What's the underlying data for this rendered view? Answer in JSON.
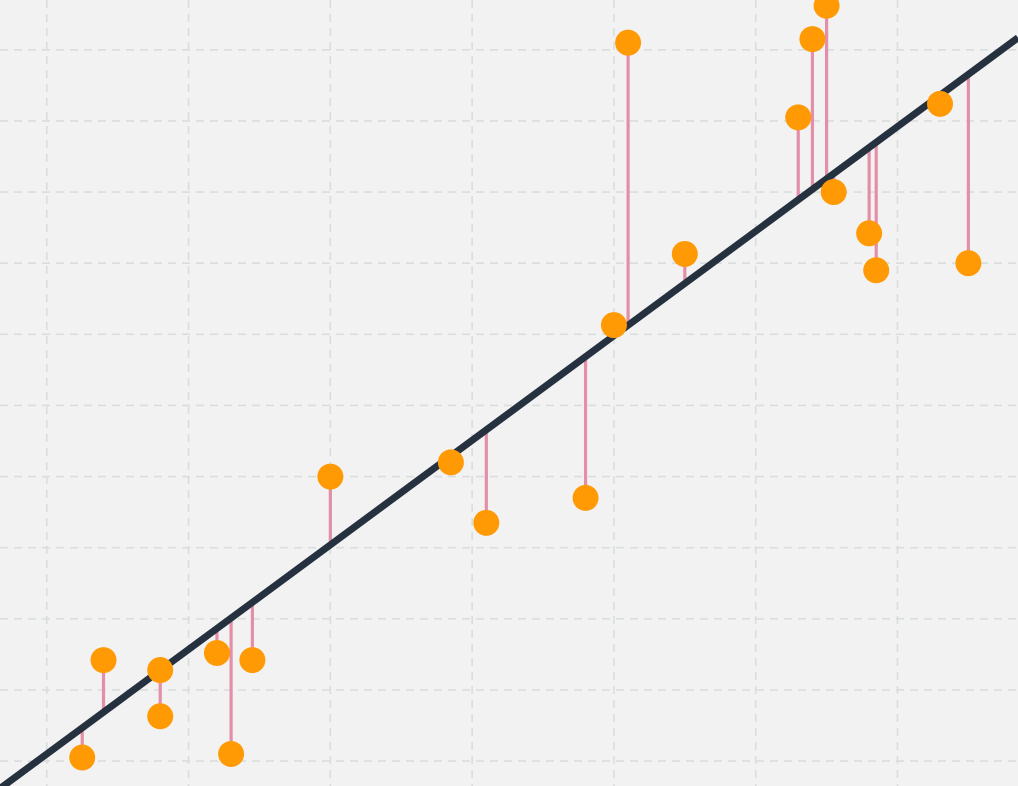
{
  "chart_data": {
    "type": "scatter",
    "grid": true,
    "xlim": [
      -0.33,
      6.85
    ],
    "ylim": [
      -0.35,
      10.7
    ],
    "fit_line": {
      "slope": 1.47,
      "intercept": 0.1
    },
    "series": [
      {
        "x": [
          0.25,
          0.4,
          0.8,
          0.8,
          1.2,
          1.3,
          1.45,
          2.0,
          2.85,
          3.1,
          3.8,
          4.0,
          4.1,
          4.5,
          5.3,
          5.4,
          5.5,
          5.55,
          5.8,
          5.85,
          6.3,
          6.5
        ],
        "y": [
          0.05,
          1.42,
          1.28,
          0.63,
          1.52,
          0.1,
          1.42,
          4.0,
          4.2,
          3.35,
          3.7,
          6.13,
          10.1,
          7.13,
          9.05,
          10.15,
          10.62,
          8.0,
          7.42,
          6.9,
          9.24,
          7.0
        ]
      }
    ],
    "colors": {
      "background": "#f2f2f2",
      "grid": "#d9dddd",
      "point": "#ff9a05",
      "residual": "#e38fa8",
      "fit_line": "#263140"
    }
  }
}
